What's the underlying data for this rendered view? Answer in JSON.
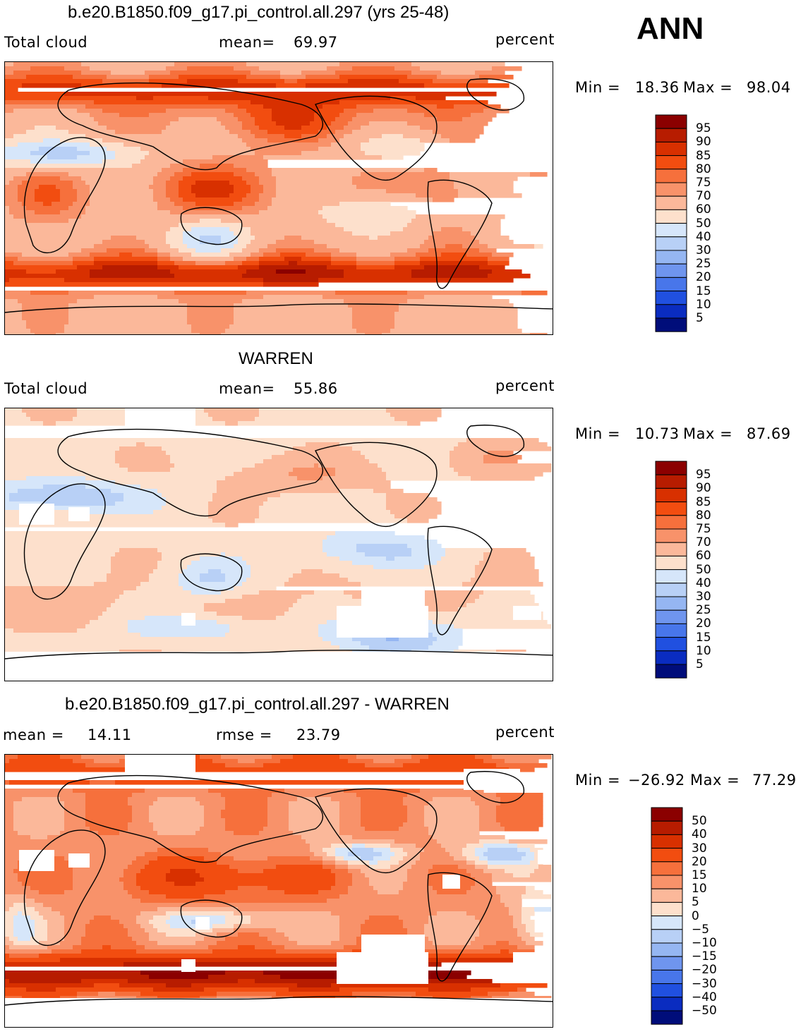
{
  "season": "ANN",
  "units": "percent",
  "panels": [
    {
      "id": "model",
      "title": "b.e20.B1850.f09_g17.pi_control.all.297 (yrs 25-48)",
      "left_label": "Total cloud",
      "stat1_label": "mean=",
      "stat1_value": "69.97",
      "min_label": "Min  =",
      "min_value": "18.36",
      "max_label": "Max  =",
      "max_value": "98.04",
      "levels": [
        "95",
        "90",
        "85",
        "80",
        "75",
        "70",
        "60",
        "50",
        "40",
        "30",
        "25",
        "20",
        "15",
        "10",
        "5"
      ],
      "colors": [
        "#8b0000",
        "#b71c00",
        "#d83000",
        "#f24d10",
        "#f6703c",
        "#f8926a",
        "#fbb89a",
        "#fde0cc",
        "#d6e6fa",
        "#b8d0f6",
        "#95b6f2",
        "#6f95ee",
        "#4876ea",
        "#2050e0",
        "#0a2cc0",
        "#000d7a"
      ]
    },
    {
      "id": "obs",
      "title": "WARREN",
      "left_label": "Total cloud",
      "stat1_label": "mean=",
      "stat1_value": "55.86",
      "min_label": "Min  =",
      "min_value": "10.73",
      "max_label": "Max  =",
      "max_value": "87.69",
      "levels": [
        "95",
        "90",
        "85",
        "80",
        "75",
        "70",
        "60",
        "50",
        "40",
        "30",
        "25",
        "20",
        "15",
        "10",
        "5"
      ],
      "colors": [
        "#8b0000",
        "#b71c00",
        "#d83000",
        "#f24d10",
        "#f6703c",
        "#f8926a",
        "#fbb89a",
        "#fde0cc",
        "#d6e6fa",
        "#b8d0f6",
        "#95b6f2",
        "#6f95ee",
        "#4876ea",
        "#2050e0",
        "#0a2cc0",
        "#000d7a"
      ]
    },
    {
      "id": "diff",
      "title": "b.e20.B1850.f09_g17.pi_control.all.297 - WARREN",
      "left_label": "mean  =",
      "left_value": "14.11",
      "stat1_label": "rmse  =",
      "stat1_value": "23.79",
      "min_label": "Min  =",
      "min_value": "−26.92",
      "max_label": "Max  =",
      "max_value": "77.29",
      "levels": [
        "50",
        "40",
        "30",
        "20",
        "15",
        "10",
        "5",
        "0",
        "−5",
        "−10",
        "−15",
        "−20",
        "−30",
        "−40",
        "−50"
      ],
      "colors": [
        "#8b0000",
        "#b71c00",
        "#d83000",
        "#f24d10",
        "#f6703c",
        "#f8926a",
        "#fbb89a",
        "#fde0cc",
        "#d6e6fa",
        "#b8d0f6",
        "#95b6f2",
        "#6f95ee",
        "#4876ea",
        "#2050e0",
        "#0a2cc0",
        "#000d7a"
      ]
    }
  ]
}
